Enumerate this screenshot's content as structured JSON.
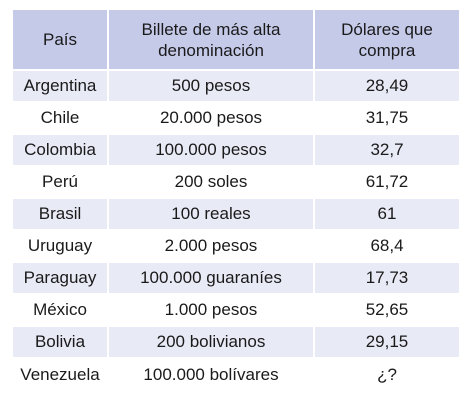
{
  "table": {
    "headers": [
      "País",
      "Billete de más alta denominación",
      "Dólares que compra"
    ],
    "rows": [
      [
        "Argentina",
        "500 pesos",
        "28,49"
      ],
      [
        "Chile",
        "20.000 pesos",
        "31,75"
      ],
      [
        "Colombia",
        "100.000 pesos",
        "32,7"
      ],
      [
        "Perú",
        "200 soles",
        "61,72"
      ],
      [
        "Brasil",
        "100 reales",
        "61"
      ],
      [
        "Uruguay",
        "2.000 pesos",
        "68,4"
      ],
      [
        "Paraguay",
        "100.000 guaraníes",
        "17,73"
      ],
      [
        "México",
        "1.000 pesos",
        "52,65"
      ],
      [
        "Bolivia",
        "200 bolivianos",
        "29,15"
      ],
      [
        "Venezuela",
        "100.000 bolívares",
        "¿?"
      ]
    ]
  },
  "colors": {
    "header_bg": "#c5cae9",
    "stripe_bg": "#e8eaf6"
  }
}
